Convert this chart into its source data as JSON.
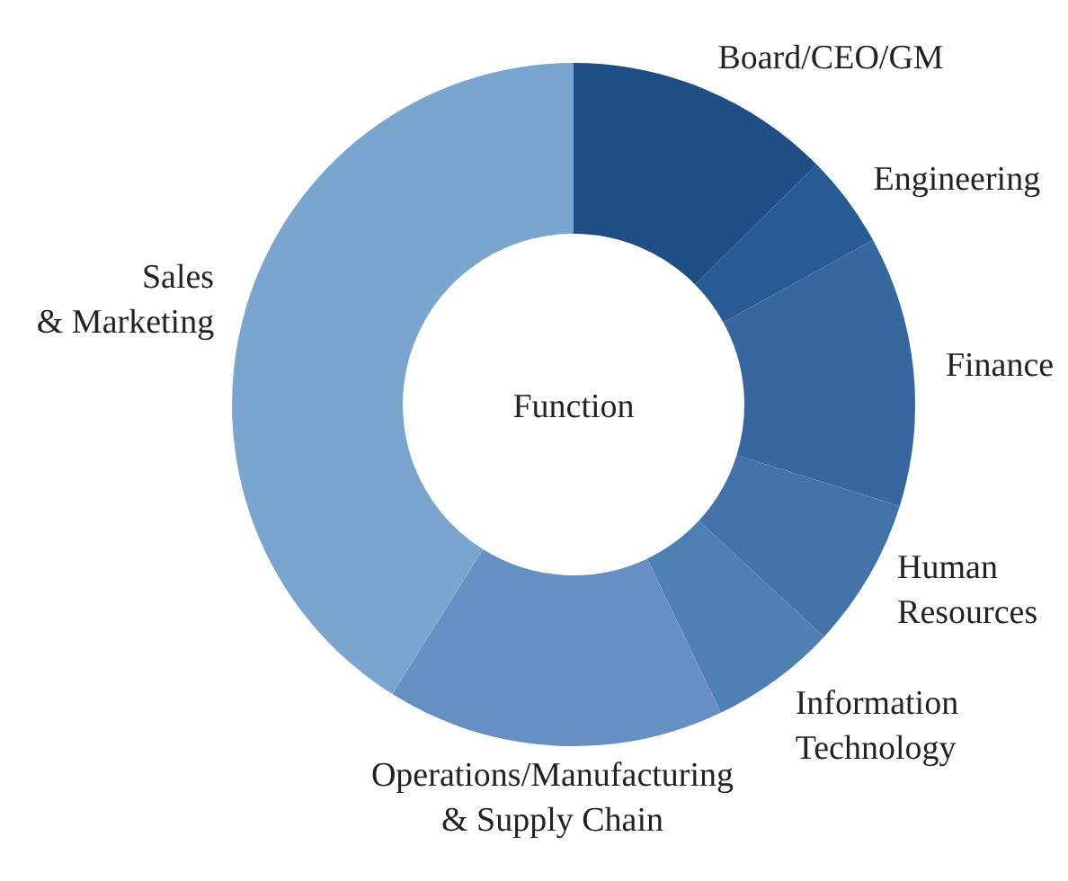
{
  "chart_data": {
    "type": "donut",
    "title": "Function",
    "categories": [
      "Board/CEO/GM",
      "Engineering",
      "Finance",
      "Human\nResources",
      "Information\nTechnology",
      "Operations/Manufacturing\n& Supply Chain",
      "Sales\n& Marketing"
    ],
    "values": [
      12.6,
      4.4,
      12.8,
      7.1,
      6.0,
      16.0,
      41.1
    ],
    "colors": [
      "#1f4e85",
      "#285a93",
      "#36679f",
      "#4373a8",
      "#4f80b3",
      "#6690c4",
      "#79a5cf"
    ]
  }
}
